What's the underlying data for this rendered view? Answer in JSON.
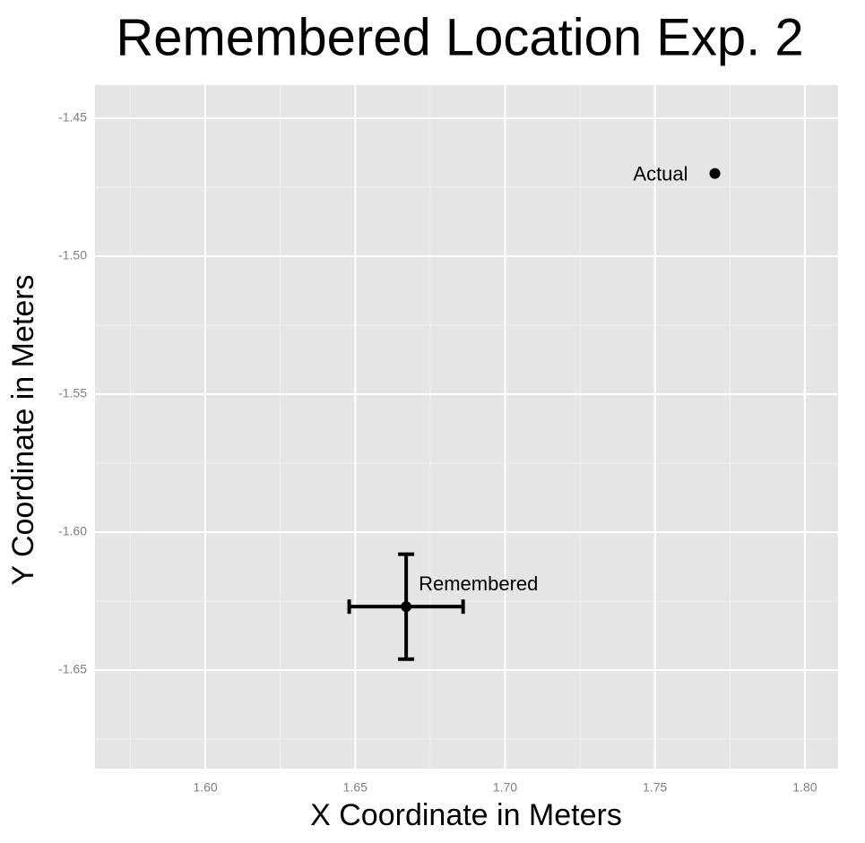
{
  "chart_data": {
    "type": "scatter",
    "title": "Remembered Location Exp. 2",
    "x_label": "X Coordinate in Meters",
    "y_label": "Y Coordinate in Meters",
    "points": [
      {
        "label": "Actual",
        "x": 1.77,
        "y": -1.47
      },
      {
        "label": "Remembered",
        "x": 1.667,
        "y": -1.627,
        "xerr": 0.019,
        "yerr": 0.019
      }
    ],
    "color": "#000000",
    "xlim": [
      1.5632,
      1.8111
    ],
    "ylim": [
      -1.6857,
      -1.438
    ],
    "xticks": [
      {
        "value": 1.6,
        "label": "1.60"
      },
      1.65,
      {
        "value": 1.7,
        "label": "1.70"
      },
      1.75,
      {
        "value": 1.8,
        "label": "1.80"
      }
    ],
    "yticks": [
      -1.45,
      {
        "value": -1.5,
        "label": "-1.50"
      },
      -1.55,
      {
        "value": -1.6,
        "label": "-1.60"
      },
      -1.65
    ],
    "grid": true
  }
}
